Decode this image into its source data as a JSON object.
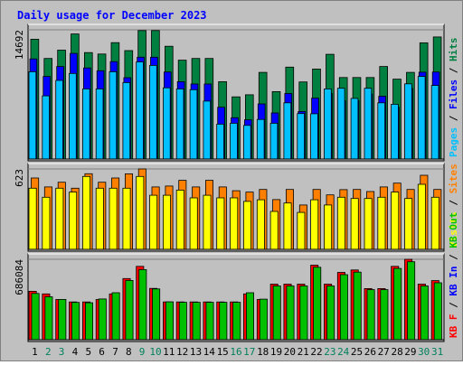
{
  "chart_data": {
    "type": "bar",
    "title": "Daily usage for December 2023",
    "title_color": "#0000ff",
    "categories": [
      "1",
      "2",
      "3",
      "4",
      "5",
      "6",
      "7",
      "8",
      "9",
      "10",
      "11",
      "12",
      "13",
      "14",
      "15",
      "16",
      "17",
      "18",
      "19",
      "20",
      "21",
      "22",
      "23",
      "24",
      "25",
      "26",
      "27",
      "28",
      "29",
      "30",
      "31"
    ],
    "weekend_categories": [
      "2",
      "3",
      "9",
      "10",
      "16",
      "17",
      "23",
      "24",
      "30",
      "31"
    ],
    "weekday_label_color": "#000000",
    "weekend_label_color": "#00805c",
    "panels": [
      {
        "name": "hits-files-pages",
        "axis_label": "14692",
        "ylim": [
          0,
          14692
        ],
        "ylabel_parts": [
          {
            "text": "Pages",
            "color": "#00c0ff"
          },
          {
            "text": " / ",
            "color": "#000000"
          },
          {
            "text": "Files",
            "color": "#0000ff"
          },
          {
            "text": " / ",
            "color": "#000000"
          },
          {
            "text": "Hits",
            "color": "#008040"
          }
        ],
        "series": [
          {
            "name": "Hits",
            "color": "#008040",
            "values": [
              13624,
              11440,
              12376,
              14224,
              12104,
              11936,
              13232,
              12328,
              14608,
              14608,
              12824,
              11240,
              11432,
              11432,
              8792,
              7064,
              7304,
              9848,
              7664,
              10448,
              8768,
              10232,
              11904,
              9272,
              9272,
              9272,
              10520,
              9080,
              9848,
              13208,
              13880
            ]
          },
          {
            "name": "Files",
            "color": "#0000ff",
            "values": [
              11384,
              9392,
              10520,
              12008,
              10352,
              10040,
              11072,
              9248,
              11576,
              11576,
              9896,
              8792,
              8528,
              8528,
              5888,
              4696,
              4464,
              6272,
              5240,
              7448,
              5408,
              6920,
              7448,
              6632,
              6632,
              7400,
              7136,
              5888,
              8048,
              9872,
              9896
            ]
          },
          {
            "name": "Pages",
            "color": "#00c0ff",
            "values": [
              9920,
              7184,
              8936,
              9728,
              7976,
              7976,
              9920,
              8696,
              11040,
              10640,
              8096,
              7976,
              7880,
              6584,
              3968,
              4064,
              3824,
              4496,
              4064,
              6392,
              5168,
              5144,
              7976,
              8048,
              6896,
              8048,
              6392,
              6224,
              8552,
              9392,
              8360
            ]
          }
        ]
      },
      {
        "name": "sites-visits",
        "axis_label": "623",
        "ylim": [
          0,
          623
        ],
        "ylabel_parts": [
          {
            "text": "Visits",
            "color": "#ffff00"
          },
          {
            "text": " / ",
            "color": "#000000"
          },
          {
            "text": "Sites",
            "color": "#ff8000"
          }
        ],
        "series": [
          {
            "name": "Sites",
            "color": "#ff8000",
            "values": [
              553,
              484,
              520,
              474,
              586,
              520,
              553,
              585,
              623,
              484,
              491,
              535,
              484,
              535,
              484,
              454,
              444,
              464,
              386,
              464,
              344,
              464,
              422,
              463,
              464,
              448,
              484,
              513,
              464,
              574,
              464
            ]
          },
          {
            "name": "Visits",
            "color": "#ffff00",
            "values": [
              474,
              404,
              474,
              444,
              565,
              474,
              474,
              474,
              565,
              419,
              419,
              459,
              399,
              419,
              399,
              399,
              372,
              384,
              294,
              359,
              286,
              384,
              344,
              404,
              394,
              394,
              404,
              444,
              394,
              504,
              404
            ]
          }
        ]
      },
      {
        "name": "kb-in-out",
        "axis_label": "686084",
        "ylim": [
          0,
          686084
        ],
        "ylabel_parts": [
          {
            "text": "KB F",
            "color": "#ff0000"
          },
          {
            "text": " / ",
            "color": "#000000"
          },
          {
            "text": "KB In",
            "color": "#0000ff"
          },
          {
            "text": " / ",
            "color": "#000000"
          },
          {
            "text": "KB Out",
            "color": "#00c000"
          }
        ],
        "series": [
          {
            "name": "KB F",
            "color": "#ff0000",
            "values": [
              413000,
              391000,
              343000,
              322000,
              322000,
              343000,
              391000,
              522000,
              626000,
              438000,
              322000,
              322000,
              322000,
              322000,
              322000,
              322000,
              391000,
              343000,
              474000,
              474000,
              474000,
              636000,
              474000,
              574000,
              595000,
              436000,
              436000,
              626000,
              686084,
              474000,
              504000
            ]
          },
          {
            "name": "KB Out",
            "color": "#00c000",
            "values": [
              395000,
              366000,
              344000,
              318000,
              315000,
              348000,
              401000,
              506000,
              598000,
              433000,
              323000,
              319000,
              319000,
              319000,
              319000,
              319000,
              401000,
              346000,
              459000,
              459000,
              459000,
              618000,
              459000,
              555000,
              577000,
              427000,
              427000,
              608000,
              665000,
              459000,
              486000
            ]
          }
        ]
      }
    ],
    "grid": true
  }
}
